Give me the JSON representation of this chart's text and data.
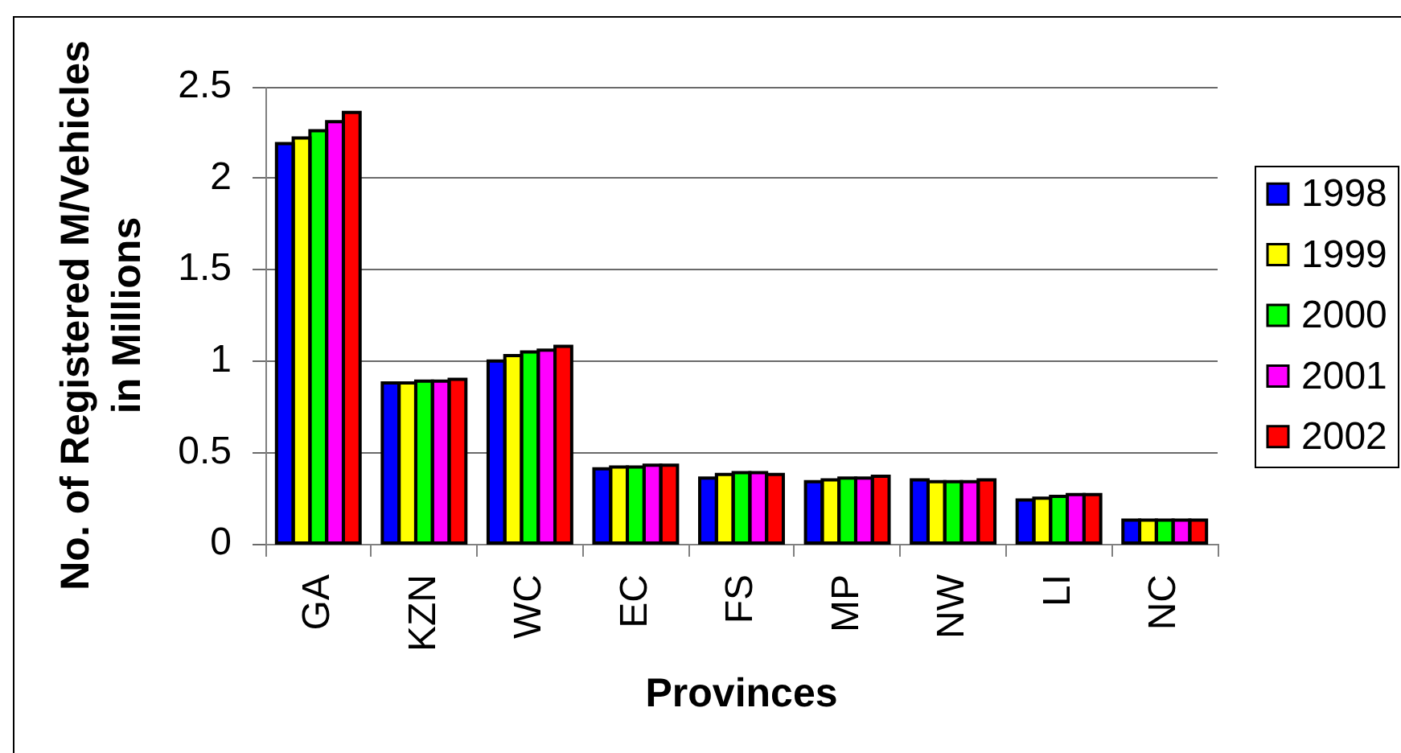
{
  "chart_data": {
    "type": "bar",
    "xlabel": "Provinces",
    "ylabel": "No. of Registered M/Vehicles\nin Millions",
    "categories": [
      "GA",
      "KZN",
      "WC",
      "EC",
      "FS",
      "MP",
      "NW",
      "LI",
      "NC"
    ],
    "series": [
      {
        "name": "1998",
        "color": "#0000ff",
        "values": [
          2.19,
          0.88,
          1.0,
          0.41,
          0.36,
          0.34,
          0.35,
          0.24,
          0.13
        ]
      },
      {
        "name": "1999",
        "color": "#ffff00",
        "values": [
          2.22,
          0.88,
          1.03,
          0.42,
          0.38,
          0.35,
          0.34,
          0.25,
          0.13
        ]
      },
      {
        "name": "2000",
        "color": "#00ff00",
        "values": [
          2.26,
          0.89,
          1.05,
          0.42,
          0.39,
          0.36,
          0.34,
          0.26,
          0.13
        ]
      },
      {
        "name": "2001",
        "color": "#ff00ff",
        "values": [
          2.31,
          0.89,
          1.06,
          0.43,
          0.39,
          0.36,
          0.34,
          0.27,
          0.13
        ]
      },
      {
        "name": "2002",
        "color": "#ff0000",
        "values": [
          2.36,
          0.9,
          1.08,
          0.43,
          0.38,
          0.37,
          0.35,
          0.27,
          0.13
        ]
      }
    ],
    "ylim": [
      0,
      2.5
    ],
    "yticks": [
      0,
      0.5,
      1,
      1.5,
      2,
      2.5
    ],
    "grid": "y",
    "legend": "right"
  }
}
